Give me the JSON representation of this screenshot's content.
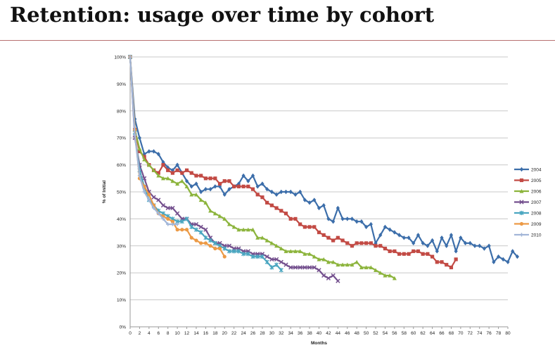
{
  "slide": {
    "title": "Retention: usage over time by cohort"
  },
  "chart_data": {
    "type": "line",
    "title": "",
    "xlabel": "Months",
    "ylabel": "% of Initial",
    "xlim": [
      0,
      80
    ],
    "ylim": [
      0,
      100
    ],
    "x_ticks": [
      0,
      2,
      4,
      6,
      8,
      10,
      12,
      14,
      16,
      18,
      20,
      22,
      24,
      26,
      28,
      30,
      32,
      34,
      36,
      38,
      40,
      42,
      44,
      46,
      48,
      50,
      52,
      54,
      56,
      58,
      60,
      62,
      64,
      66,
      68,
      70,
      72,
      74,
      76,
      78,
      80
    ],
    "y_ticks": [
      0,
      10,
      20,
      30,
      40,
      50,
      60,
      70,
      80,
      90,
      100
    ],
    "y_tick_suffix": "%",
    "grid": "horizontal",
    "legend_position": "right",
    "series": [
      {
        "name": "2004",
        "color": "#3c6eaa",
        "marker": "diamond",
        "points": [
          [
            0,
            100
          ],
          [
            1,
            77
          ],
          [
            2,
            70
          ],
          [
            3,
            64
          ],
          [
            4,
            65
          ],
          [
            5,
            65
          ],
          [
            6,
            64
          ],
          [
            7,
            61
          ],
          [
            8,
            59
          ],
          [
            9,
            58
          ],
          [
            10,
            60
          ],
          [
            11,
            57
          ],
          [
            12,
            54
          ],
          [
            13,
            52
          ],
          [
            14,
            53
          ],
          [
            15,
            50
          ],
          [
            16,
            51
          ],
          [
            17,
            51
          ],
          [
            18,
            52
          ],
          [
            19,
            52
          ],
          [
            20,
            49
          ],
          [
            21,
            51
          ],
          [
            22,
            52
          ],
          [
            23,
            53
          ],
          [
            24,
            56
          ],
          [
            25,
            54
          ],
          [
            26,
            56
          ],
          [
            27,
            52
          ],
          [
            28,
            53
          ],
          [
            29,
            51
          ],
          [
            30,
            50
          ],
          [
            31,
            49
          ],
          [
            32,
            50
          ],
          [
            33,
            50
          ],
          [
            34,
            50
          ],
          [
            35,
            49
          ],
          [
            36,
            50
          ],
          [
            37,
            47
          ],
          [
            38,
            46
          ],
          [
            39,
            47
          ],
          [
            40,
            44
          ],
          [
            41,
            45
          ],
          [
            42,
            40
          ],
          [
            43,
            39
          ],
          [
            44,
            44
          ],
          [
            45,
            40
          ],
          [
            46,
            40
          ],
          [
            47,
            40
          ],
          [
            48,
            39
          ],
          [
            49,
            39
          ],
          [
            50,
            37
          ],
          [
            51,
            38
          ],
          [
            52,
            31
          ],
          [
            53,
            34
          ],
          [
            54,
            37
          ],
          [
            55,
            36
          ],
          [
            56,
            35
          ],
          [
            57,
            34
          ],
          [
            58,
            33
          ],
          [
            59,
            33
          ],
          [
            60,
            31
          ],
          [
            61,
            34
          ],
          [
            62,
            31
          ],
          [
            63,
            30
          ],
          [
            64,
            32
          ],
          [
            65,
            28
          ],
          [
            66,
            33
          ],
          [
            67,
            30
          ],
          [
            68,
            34
          ],
          [
            69,
            28
          ],
          [
            70,
            33
          ],
          [
            71,
            31
          ],
          [
            72,
            31
          ],
          [
            73,
            30
          ],
          [
            74,
            30
          ],
          [
            75,
            29
          ],
          [
            76,
            30
          ],
          [
            77,
            24
          ],
          [
            78,
            26
          ],
          [
            79,
            25
          ],
          [
            80,
            24
          ],
          [
            81,
            28
          ],
          [
            82,
            26
          ]
        ]
      },
      {
        "name": "2005",
        "color": "#c24a44",
        "marker": "square",
        "points": [
          [
            0,
            100
          ],
          [
            1,
            73
          ],
          [
            2,
            65
          ],
          [
            3,
            63
          ],
          [
            4,
            60
          ],
          [
            5,
            58
          ],
          [
            6,
            57
          ],
          [
            7,
            60
          ],
          [
            8,
            58
          ],
          [
            9,
            57
          ],
          [
            10,
            58
          ],
          [
            11,
            57
          ],
          [
            12,
            58
          ],
          [
            13,
            57
          ],
          [
            14,
            56
          ],
          [
            15,
            56
          ],
          [
            16,
            55
          ],
          [
            17,
            55
          ],
          [
            18,
            55
          ],
          [
            19,
            53
          ],
          [
            20,
            54
          ],
          [
            21,
            54
          ],
          [
            22,
            52
          ],
          [
            23,
            52
          ],
          [
            24,
            52
          ],
          [
            25,
            52
          ],
          [
            26,
            51
          ],
          [
            27,
            49
          ],
          [
            28,
            48
          ],
          [
            29,
            46
          ],
          [
            30,
            45
          ],
          [
            31,
            44
          ],
          [
            32,
            43
          ],
          [
            33,
            42
          ],
          [
            34,
            40
          ],
          [
            35,
            40
          ],
          [
            36,
            38
          ],
          [
            37,
            37
          ],
          [
            38,
            37
          ],
          [
            39,
            37
          ],
          [
            40,
            35
          ],
          [
            41,
            34
          ],
          [
            42,
            33
          ],
          [
            43,
            32
          ],
          [
            44,
            33
          ],
          [
            45,
            32
          ],
          [
            46,
            31
          ],
          [
            47,
            30
          ],
          [
            48,
            31
          ],
          [
            49,
            31
          ],
          [
            50,
            31
          ],
          [
            51,
            31
          ],
          [
            52,
            30
          ],
          [
            53,
            30
          ],
          [
            54,
            29
          ],
          [
            55,
            28
          ],
          [
            56,
            28
          ],
          [
            57,
            27
          ],
          [
            58,
            27
          ],
          [
            59,
            27
          ],
          [
            60,
            28
          ],
          [
            61,
            28
          ],
          [
            62,
            27
          ],
          [
            63,
            27
          ],
          [
            64,
            26
          ],
          [
            65,
            24
          ],
          [
            66,
            24
          ],
          [
            67,
            23
          ],
          [
            68,
            22
          ],
          [
            69,
            25
          ]
        ]
      },
      {
        "name": "2006",
        "color": "#8cb43c",
        "marker": "triangle",
        "points": [
          [
            0,
            100
          ],
          [
            1,
            73
          ],
          [
            2,
            66
          ],
          [
            3,
            62
          ],
          [
            4,
            60
          ],
          [
            5,
            58
          ],
          [
            6,
            56
          ],
          [
            7,
            55
          ],
          [
            8,
            55
          ],
          [
            9,
            54
          ],
          [
            10,
            53
          ],
          [
            11,
            54
          ],
          [
            12,
            52
          ],
          [
            13,
            49
          ],
          [
            14,
            49
          ],
          [
            15,
            47
          ],
          [
            16,
            46
          ],
          [
            17,
            43
          ],
          [
            18,
            42
          ],
          [
            19,
            41
          ],
          [
            20,
            40
          ],
          [
            21,
            38
          ],
          [
            22,
            37
          ],
          [
            23,
            36
          ],
          [
            24,
            36
          ],
          [
            25,
            36
          ],
          [
            26,
            36
          ],
          [
            27,
            33
          ],
          [
            28,
            33
          ],
          [
            29,
            32
          ],
          [
            30,
            31
          ],
          [
            31,
            30
          ],
          [
            32,
            29
          ],
          [
            33,
            28
          ],
          [
            34,
            28
          ],
          [
            35,
            28
          ],
          [
            36,
            28
          ],
          [
            37,
            27
          ],
          [
            38,
            27
          ],
          [
            39,
            26
          ],
          [
            40,
            25
          ],
          [
            41,
            25
          ],
          [
            42,
            24
          ],
          [
            43,
            24
          ],
          [
            44,
            23
          ],
          [
            45,
            23
          ],
          [
            46,
            23
          ],
          [
            47,
            23
          ],
          [
            48,
            24
          ],
          [
            49,
            22
          ],
          [
            50,
            22
          ],
          [
            51,
            22
          ],
          [
            52,
            21
          ],
          [
            53,
            20
          ],
          [
            54,
            19
          ],
          [
            55,
            19
          ],
          [
            56,
            18
          ]
        ]
      },
      {
        "name": "2007",
        "color": "#74508e",
        "marker": "x",
        "points": [
          [
            0,
            100
          ],
          [
            1,
            70
          ],
          [
            2,
            60
          ],
          [
            3,
            55
          ],
          [
            4,
            50
          ],
          [
            5,
            48
          ],
          [
            6,
            47
          ],
          [
            7,
            45
          ],
          [
            8,
            44
          ],
          [
            9,
            44
          ],
          [
            10,
            42
          ],
          [
            11,
            40
          ],
          [
            12,
            40
          ],
          [
            13,
            38
          ],
          [
            14,
            38
          ],
          [
            15,
            37
          ],
          [
            16,
            36
          ],
          [
            17,
            33
          ],
          [
            18,
            31
          ],
          [
            19,
            31
          ],
          [
            20,
            30
          ],
          [
            21,
            30
          ],
          [
            22,
            29
          ],
          [
            23,
            29
          ],
          [
            24,
            28
          ],
          [
            25,
            28
          ],
          [
            26,
            27
          ],
          [
            27,
            27
          ],
          [
            28,
            27
          ],
          [
            29,
            26
          ],
          [
            30,
            25
          ],
          [
            31,
            25
          ],
          [
            32,
            24
          ],
          [
            33,
            23
          ],
          [
            34,
            22
          ],
          [
            35,
            22
          ],
          [
            36,
            22
          ],
          [
            37,
            22
          ],
          [
            38,
            22
          ],
          [
            39,
            22
          ],
          [
            40,
            21
          ],
          [
            41,
            19
          ],
          [
            42,
            18
          ],
          [
            43,
            19
          ],
          [
            44,
            17
          ]
        ]
      },
      {
        "name": "2008",
        "color": "#4aa6c0",
        "marker": "star",
        "points": [
          [
            0,
            100
          ],
          [
            1,
            72
          ],
          [
            2,
            58
          ],
          [
            3,
            52
          ],
          [
            4,
            47
          ],
          [
            5,
            45
          ],
          [
            6,
            43
          ],
          [
            7,
            42
          ],
          [
            8,
            41
          ],
          [
            9,
            40
          ],
          [
            10,
            39
          ],
          [
            11,
            39
          ],
          [
            12,
            40
          ],
          [
            13,
            37
          ],
          [
            14,
            36
          ],
          [
            15,
            35
          ],
          [
            16,
            33
          ],
          [
            17,
            32
          ],
          [
            18,
            31
          ],
          [
            19,
            30
          ],
          [
            20,
            29
          ],
          [
            21,
            28
          ],
          [
            22,
            28
          ],
          [
            23,
            28
          ],
          [
            24,
            27
          ],
          [
            25,
            27
          ],
          [
            26,
            26
          ],
          [
            27,
            26
          ],
          [
            28,
            26
          ],
          [
            29,
            24
          ],
          [
            30,
            22
          ],
          [
            31,
            23
          ],
          [
            32,
            21
          ]
        ]
      },
      {
        "name": "2009",
        "color": "#ec9a46",
        "marker": "circle",
        "points": [
          [
            0,
            100
          ],
          [
            1,
            73
          ],
          [
            2,
            55
          ],
          [
            3,
            52
          ],
          [
            4,
            49
          ],
          [
            5,
            45
          ],
          [
            6,
            42
          ],
          [
            7,
            41
          ],
          [
            8,
            40
          ],
          [
            9,
            39
          ],
          [
            10,
            36
          ],
          [
            11,
            36
          ],
          [
            12,
            36
          ],
          [
            13,
            33
          ],
          [
            14,
            32
          ],
          [
            15,
            31
          ],
          [
            16,
            31
          ],
          [
            17,
            30
          ],
          [
            18,
            29
          ],
          [
            19,
            29
          ],
          [
            20,
            26
          ]
        ]
      },
      {
        "name": "2010",
        "color": "#a2b6d8",
        "marker": "plus",
        "points": [
          [
            0,
            100
          ],
          [
            1,
            71
          ],
          [
            2,
            56
          ],
          [
            3,
            50
          ],
          [
            4,
            47
          ],
          [
            5,
            44
          ],
          [
            6,
            42
          ],
          [
            7,
            40
          ],
          [
            8,
            38
          ],
          [
            9,
            38
          ],
          [
            10,
            38
          ]
        ]
      }
    ]
  }
}
